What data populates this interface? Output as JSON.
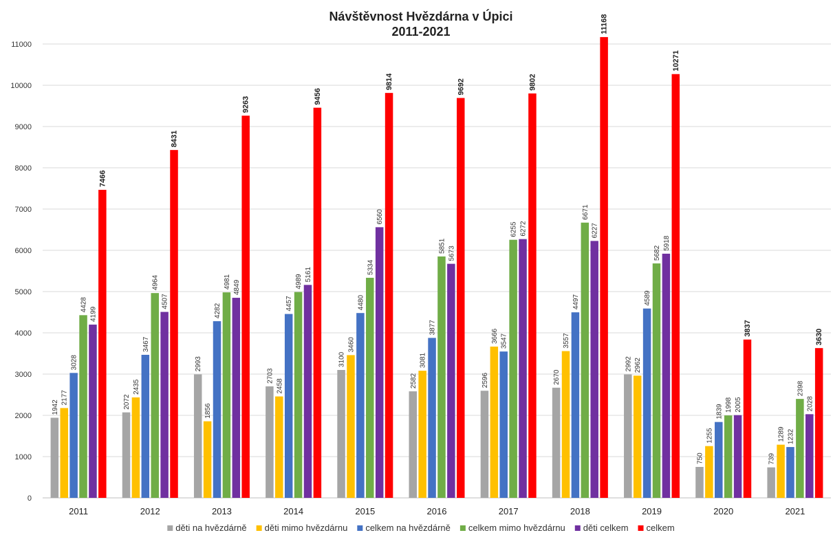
{
  "chart_data": {
    "type": "bar",
    "title": "Návštěvnost Hvězdárna v Úpici",
    "subtitle": "2011-2021",
    "xlabel": "",
    "ylabel": "",
    "ylim": [
      0,
      11000
    ],
    "yticks": [
      "0",
      "1000",
      "2000",
      "3000",
      "4000",
      "5000",
      "6000",
      "7000",
      "8000",
      "9000",
      "10000",
      "11000"
    ],
    "grid": true,
    "legend_position": "bottom",
    "categories": [
      "2011",
      "2012",
      "2013",
      "2014",
      "2015",
      "2016",
      "2017",
      "2018",
      "2019",
      "2020",
      "2021"
    ],
    "series": [
      {
        "name": "děti na hvězdárně",
        "color": "#a5a5a5",
        "values": [
          1942,
          2072,
          2993,
          2703,
          3100,
          2582,
          2596,
          2670,
          2992,
          750,
          739
        ]
      },
      {
        "name": "děti mimo hvězdárnu",
        "color": "#ffc000",
        "values": [
          2177,
          2435,
          1856,
          2458,
          3460,
          3081,
          3666,
          3557,
          2962,
          1255,
          1289
        ]
      },
      {
        "name": "celkem na hvězdárně",
        "color": "#4472c4",
        "values": [
          3028,
          3467,
          4282,
          4457,
          4480,
          3877,
          3547,
          4497,
          4589,
          1839,
          1232
        ]
      },
      {
        "name": "celkem mimo hvězdárnu",
        "color": "#70ad47",
        "values": [
          4428,
          4964,
          4981,
          4989,
          5334,
          5851,
          6255,
          6671,
          5682,
          1998,
          2398
        ]
      },
      {
        "name": "děti celkem",
        "color": "#7030a0",
        "values": [
          4199,
          4507,
          4849,
          5161,
          6560,
          5673,
          6272,
          6227,
          5918,
          2005,
          2028
        ]
      },
      {
        "name": "celkem",
        "color": "#ff0000",
        "values": [
          7466,
          8431,
          9263,
          9456,
          9814,
          9692,
          9802,
          11168,
          10271,
          3837,
          3630
        ]
      }
    ]
  }
}
